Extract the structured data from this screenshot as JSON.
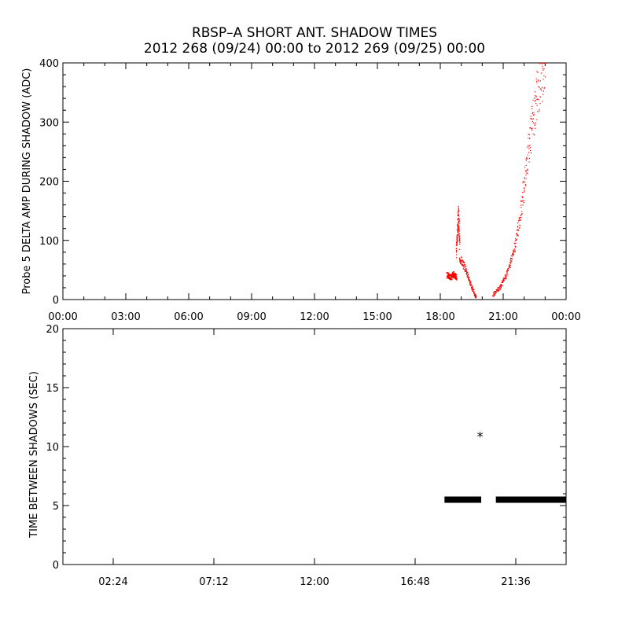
{
  "title_line1": "RBSP–A SHORT ANT. SHADOW TIMES",
  "title_line2": "2012 268 (09/24) 00:00 to 2012 269 (09/25) 00:00",
  "chart_data": [
    {
      "type": "scatter",
      "title": "",
      "xlabel": "",
      "ylabel": "Probe 5 DELTA AMP DURING SHADOW (ADC)",
      "xlim_hours": [
        0,
        24
      ],
      "ylim": [
        0,
        400
      ],
      "x_tick_labels": [
        "00:00",
        "03:00",
        "06:00",
        "09:00",
        "12:00",
        "15:00",
        "18:00",
        "21:00",
        "00:00"
      ],
      "y_tick_labels": [
        "0",
        "100",
        "200",
        "300",
        "400"
      ],
      "y_ticks": [
        0,
        100,
        200,
        300,
        400
      ],
      "marker_color": "#ff0000",
      "series": [
        {
          "segments_hours_adc": [
            {
              "x": [
                18.3,
                18.4,
                18.5,
                18.6,
                18.7,
                18.75
              ],
              "y": [
                42,
                40,
                38,
                44,
                40,
                38
              ]
            },
            {
              "x": [
                18.75,
                18.8,
                18.85,
                18.9
              ],
              "y": [
                80,
                120,
                145,
                90
              ]
            },
            {
              "x": [
                18.9,
                19.1,
                19.3,
                19.5,
                19.7
              ],
              "y": [
                70,
                60,
                40,
                20,
                3
              ]
            },
            {
              "x": [
                20.5,
                20.8,
                21.1,
                21.4,
                21.7,
                22.0,
                22.3,
                22.6,
                23.0
              ],
              "y": [
                8,
                20,
                40,
                70,
                120,
                200,
                280,
                350,
                400
              ]
            }
          ]
        }
      ]
    },
    {
      "type": "scatter",
      "title": "",
      "xlabel": "",
      "ylabel": "TIME BETWEEN SHADOWS (SEC)",
      "xlim_hours": [
        0,
        24
      ],
      "ylim": [
        0,
        20
      ],
      "x_tick_labels": [
        "02:24",
        "07:12",
        "12:00",
        "16:48",
        "21:36"
      ],
      "x_ticks_hours": [
        2.4,
        7.2,
        12.0,
        16.8,
        21.6
      ],
      "y_tick_labels": [
        "0",
        "5",
        "10",
        "15",
        "20"
      ],
      "y_ticks": [
        0,
        5,
        10,
        15,
        20
      ],
      "marker_color": "#000000",
      "series": [
        {
          "bands": [
            {
              "x_start": 18.2,
              "x_end": 19.95,
              "y": 5.5
            },
            {
              "x_start": 20.65,
              "x_end": 24.0,
              "y": 5.5
            }
          ],
          "points": [
            {
              "x": 19.9,
              "y": 10.9
            }
          ]
        }
      ]
    }
  ]
}
